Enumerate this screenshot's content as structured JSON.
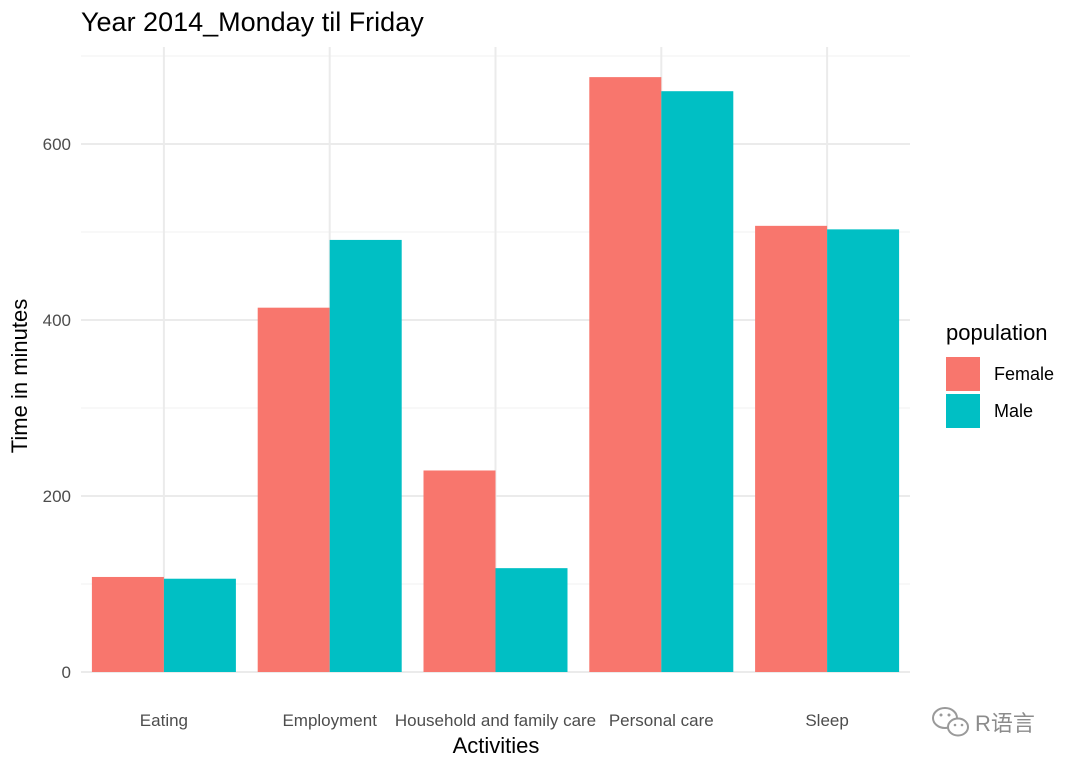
{
  "chart_data": {
    "type": "bar",
    "title": "Year 2014_Monday til Friday",
    "xlabel": "Activities",
    "ylabel": "Time in minutes",
    "categories": [
      "Eating",
      "Employment",
      "Household and family care",
      "Personal care",
      "Sleep"
    ],
    "series": [
      {
        "name": "Female",
        "color": "#F8766D",
        "values": [
          108,
          414,
          229,
          676,
          507
        ]
      },
      {
        "name": "Male",
        "color": "#00BFC4",
        "values": [
          106,
          491,
          118,
          660,
          503
        ]
      }
    ],
    "ylim": [
      0,
      700
    ],
    "yticks": [
      0,
      200,
      400,
      600
    ],
    "grid": true,
    "legend": {
      "title": "population",
      "position": "right"
    }
  },
  "watermark": {
    "text": "R语言",
    "icon": "wechat-icon"
  }
}
